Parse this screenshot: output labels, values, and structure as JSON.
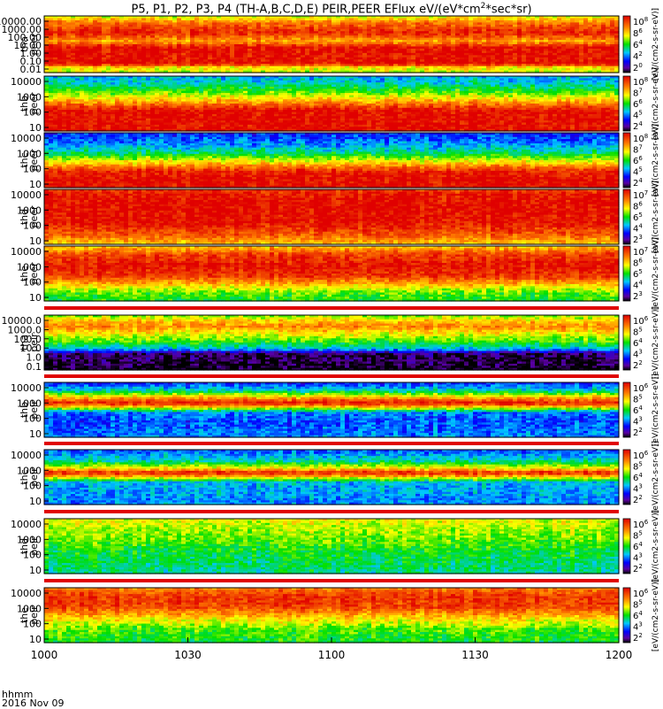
{
  "title": "P5, P1, P2, P3, P4 (TH-A,B,C,D,E) PEIR,PEER EFlux eV/(eV*cm",
  "title_sup": "2",
  "title_tail": "*sec*sr)",
  "footer": {
    "unit": "hhmm",
    "date": "2016 Nov 09"
  },
  "colorbar_unit_text": "[eV/(cm2-s-sr-eV)]",
  "chart_data": {
    "type": "heatmap",
    "x_ticks": [
      "1000",
      "1030",
      "1100",
      "1130",
      "1200"
    ],
    "colors": {
      "low": "#0000c0",
      "mid": "#00e000",
      "high": "#d00000",
      "fill": "#000000"
    },
    "panels": [
      {
        "probe": "tha",
        "species": "peer",
        "yticks": [
          "10000.00",
          "1000.00",
          "100.00",
          "10.00",
          "1.00",
          "0.10",
          "0.01"
        ],
        "ylog": [
          -2,
          4.6
        ],
        "cb": [
          "10",
          "8",
          "6",
          "4",
          "2"
        ],
        "cb_exp": [
          8,
          6,
          4,
          2,
          0
        ]
      },
      {
        "probe": "thb",
        "species": "peer",
        "yticks": [
          "10000",
          "1000",
          "100",
          "10"
        ],
        "ylog": [
          1,
          4.3
        ],
        "cb": [
          "10",
          "8",
          "6",
          "4",
          "2"
        ],
        "cb_exp": [
          8,
          7,
          6,
          5,
          4
        ]
      },
      {
        "probe": "thc",
        "species": "peer",
        "yticks": [
          "10000",
          "1000",
          "100",
          "10"
        ],
        "ylog": [
          1,
          4.3
        ],
        "cb": [
          "10",
          "8",
          "6",
          "4",
          "2"
        ],
        "cb_exp": [
          8,
          7,
          6,
          5,
          4
        ]
      },
      {
        "probe": "thd",
        "species": "peer",
        "yticks": [
          "10000",
          "1000",
          "100",
          "10"
        ],
        "ylog": [
          0.9,
          4.3
        ],
        "cb": [
          "10",
          "8",
          "6",
          "4",
          "2"
        ],
        "cb_exp": [
          7,
          6,
          5,
          4,
          3
        ]
      },
      {
        "probe": "the",
        "species": "peer",
        "yticks": [
          "10000",
          "1000",
          "100",
          "10"
        ],
        "ylog": [
          0.8,
          4.3
        ],
        "cb": [
          "10",
          "8",
          "6",
          "4",
          "2"
        ],
        "cb_exp": [
          7,
          6,
          5,
          4,
          3
        ]
      },
      {
        "probe": "tha",
        "species": "peir",
        "yticks": [
          "10000.0",
          "1000.0",
          "100.0",
          "10.0",
          "1.0",
          "0.1"
        ],
        "ylog": [
          -1,
          4.6
        ],
        "cb": [
          "10",
          "8",
          "6",
          "4",
          "2"
        ],
        "cb_exp": [
          6,
          5,
          4,
          3,
          2
        ]
      },
      {
        "probe": "thb",
        "species": "peir",
        "yticks": [
          "10000",
          "1000",
          "100",
          "10"
        ],
        "ylog": [
          0.7,
          4.4
        ],
        "cb": [
          "10",
          "8",
          "6",
          "4",
          "2"
        ],
        "cb_exp": [
          6,
          5,
          4,
          3,
          2
        ]
      },
      {
        "probe": "thc",
        "species": "peir",
        "yticks": [
          "10000",
          "1000",
          "100",
          "10"
        ],
        "ylog": [
          0.7,
          4.4
        ],
        "cb": [
          "10",
          "8",
          "6",
          "4",
          "2"
        ],
        "cb_exp": [
          6,
          5,
          4,
          3,
          2
        ]
      },
      {
        "probe": "thd",
        "species": "peir",
        "yticks": [
          "10000",
          "1000",
          "100",
          "10"
        ],
        "ylog": [
          0.7,
          4.4
        ],
        "cb": [
          "10",
          "8",
          "6",
          "4",
          "2"
        ],
        "cb_exp": [
          6,
          5,
          4,
          3,
          2
        ]
      },
      {
        "probe": "the",
        "species": "peir",
        "yticks": [
          "10000",
          "1000",
          "100",
          "10"
        ],
        "ylog": [
          0.7,
          4.4
        ],
        "cb": [
          "10",
          "8",
          "6",
          "4",
          "2"
        ],
        "cb_exp": [
          6,
          5,
          4,
          3,
          2
        ]
      }
    ]
  }
}
